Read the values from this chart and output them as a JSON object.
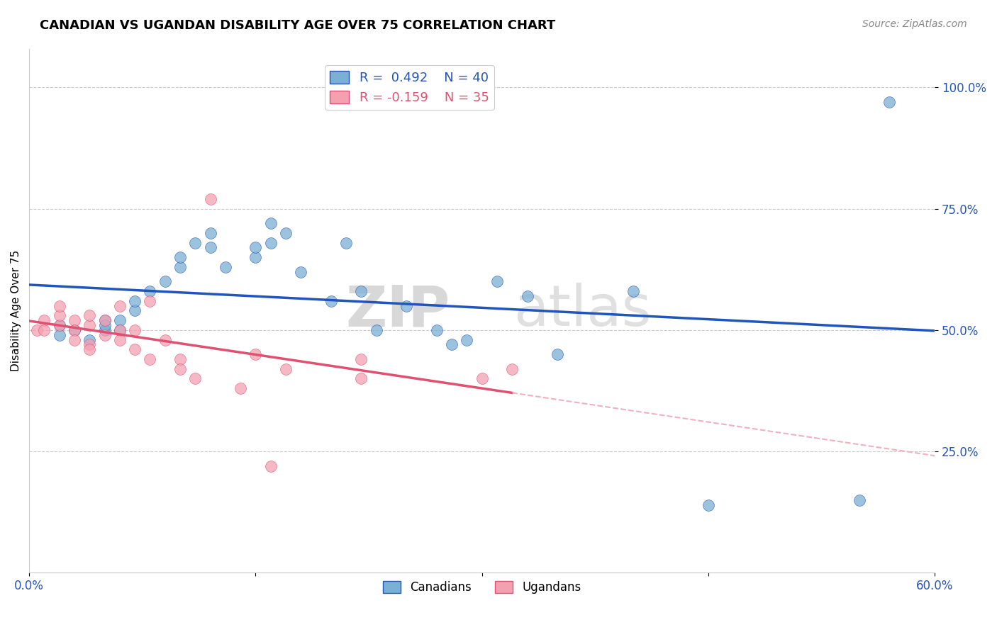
{
  "title": "CANADIAN VS UGANDAN DISABILITY AGE OVER 75 CORRELATION CHART",
  "source": "Source: ZipAtlas.com",
  "ylabel": "Disability Age Over 75",
  "y_tick_labels": [
    "100.0%",
    "75.0%",
    "50.0%",
    "25.0%"
  ],
  "y_tick_values": [
    1.0,
    0.75,
    0.5,
    0.25
  ],
  "x_ticks": [
    0.0,
    0.15,
    0.3,
    0.45,
    0.6
  ],
  "x_lim": [
    0.0,
    0.6
  ],
  "y_lim": [
    0.0,
    1.08
  ],
  "canadian_color": "#7bafd4",
  "ugandan_color": "#f4a0b0",
  "trend_canadian_color": "#2255bb",
  "trend_ugandan_color": "#e05070",
  "trend_ugandan_dashed_color": "#f0b0c0",
  "watermark_zip": "ZIP",
  "watermark_atlas": "atlas",
  "canadian_x": [
    0.02,
    0.02,
    0.03,
    0.04,
    0.05,
    0.05,
    0.05,
    0.06,
    0.06,
    0.07,
    0.07,
    0.08,
    0.09,
    0.1,
    0.1,
    0.11,
    0.12,
    0.12,
    0.13,
    0.15,
    0.15,
    0.16,
    0.16,
    0.17,
    0.18,
    0.2,
    0.21,
    0.22,
    0.23,
    0.25,
    0.27,
    0.28,
    0.29,
    0.31,
    0.33,
    0.35,
    0.4,
    0.45,
    0.55,
    0.57
  ],
  "canadian_y": [
    0.51,
    0.49,
    0.5,
    0.48,
    0.5,
    0.52,
    0.51,
    0.52,
    0.5,
    0.54,
    0.56,
    0.58,
    0.6,
    0.63,
    0.65,
    0.68,
    0.7,
    0.67,
    0.63,
    0.65,
    0.67,
    0.72,
    0.68,
    0.7,
    0.62,
    0.56,
    0.68,
    0.58,
    0.5,
    0.55,
    0.5,
    0.47,
    0.48,
    0.6,
    0.57,
    0.45,
    0.58,
    0.14,
    0.15,
    0.97
  ],
  "ugandan_x": [
    0.005,
    0.01,
    0.01,
    0.02,
    0.02,
    0.02,
    0.03,
    0.03,
    0.03,
    0.04,
    0.04,
    0.04,
    0.04,
    0.05,
    0.05,
    0.06,
    0.06,
    0.06,
    0.07,
    0.07,
    0.08,
    0.08,
    0.09,
    0.1,
    0.1,
    0.11,
    0.12,
    0.15,
    0.17,
    0.22,
    0.22,
    0.3,
    0.32,
    0.14,
    0.16
  ],
  "ugandan_y": [
    0.5,
    0.52,
    0.5,
    0.51,
    0.53,
    0.55,
    0.52,
    0.5,
    0.48,
    0.51,
    0.53,
    0.47,
    0.46,
    0.52,
    0.49,
    0.55,
    0.5,
    0.48,
    0.5,
    0.46,
    0.56,
    0.44,
    0.48,
    0.44,
    0.42,
    0.4,
    0.77,
    0.45,
    0.42,
    0.4,
    0.44,
    0.4,
    0.42,
    0.38,
    0.22
  ]
}
